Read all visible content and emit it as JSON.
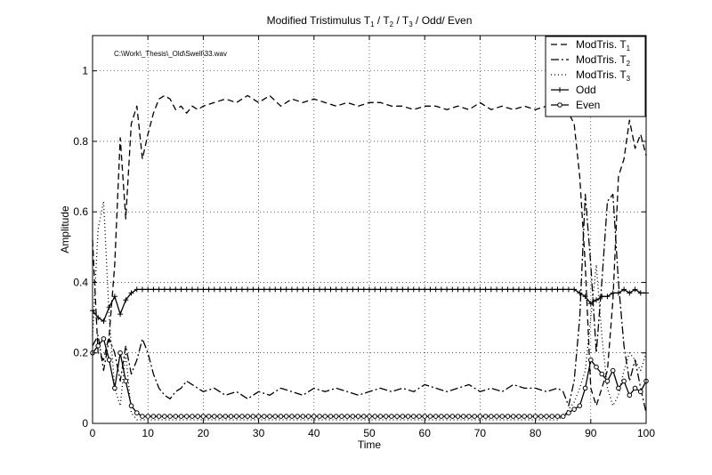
{
  "chart_data": {
    "type": "line",
    "title": {
      "prefix": "Modified Tristimulus T",
      "sub1": "1",
      "sep1": " / T",
      "sub2": "2",
      "sep2": " / T",
      "sub3": "3",
      "suffix": " / Odd/ Even"
    },
    "annotation": "C:\\Work\\_Thesis\\_Old\\Swell\\33.wav",
    "xlabel": "Time",
    "ylabel": "Amplitude",
    "xlim": [
      0,
      100
    ],
    "ylim": [
      0,
      1.1
    ],
    "xticks": [
      0,
      10,
      20,
      30,
      40,
      50,
      60,
      70,
      80,
      90,
      100
    ],
    "yticks": [
      0,
      0.2,
      0.4,
      0.6,
      0.8,
      1
    ],
    "xtick_labels": [
      "0",
      "10",
      "20",
      "30",
      "40",
      "50",
      "60",
      "70",
      "80",
      "90",
      "100"
    ],
    "ytick_labels": [
      "0",
      "0.2",
      "0.4",
      "0.6",
      "0.8",
      "1"
    ],
    "grid": true,
    "legend_position": "top-right",
    "series": [
      {
        "name": "ModTris. T",
        "name_sub": "1",
        "style": "dashed",
        "marker": "none",
        "color": "#000000",
        "x": [
          0,
          1,
          2,
          3,
          4,
          5,
          6,
          7,
          8,
          9,
          10,
          11,
          12,
          13,
          14,
          15,
          16,
          17,
          18,
          19,
          20,
          22,
          24,
          26,
          28,
          30,
          32,
          34,
          36,
          38,
          40,
          42,
          44,
          46,
          48,
          50,
          52,
          54,
          56,
          58,
          60,
          62,
          64,
          66,
          68,
          70,
          72,
          74,
          76,
          78,
          80,
          82,
          84,
          85,
          86,
          87,
          88,
          89,
          90,
          91,
          92,
          93,
          94,
          95,
          96,
          97,
          98,
          99,
          100
        ],
        "y": [
          0.52,
          0.2,
          0.18,
          0.25,
          0.45,
          0.81,
          0.58,
          0.85,
          0.9,
          0.75,
          0.82,
          0.88,
          0.92,
          0.93,
          0.92,
          0.89,
          0.9,
          0.88,
          0.9,
          0.89,
          0.9,
          0.91,
          0.92,
          0.91,
          0.93,
          0.91,
          0.93,
          0.9,
          0.92,
          0.91,
          0.92,
          0.91,
          0.9,
          0.91,
          0.9,
          0.91,
          0.91,
          0.9,
          0.9,
          0.89,
          0.9,
          0.9,
          0.89,
          0.9,
          0.89,
          0.91,
          0.89,
          0.9,
          0.89,
          0.9,
          0.89,
          0.9,
          0.89,
          0.89,
          0.88,
          0.85,
          0.7,
          0.45,
          0.1,
          0.05,
          0.1,
          0.15,
          0.35,
          0.7,
          0.75,
          0.86,
          0.78,
          0.82,
          0.76
        ]
      },
      {
        "name": "ModTris. T",
        "name_sub": "2",
        "style": "dashdot",
        "marker": "none",
        "color": "#000000",
        "x": [
          0,
          1,
          2,
          3,
          4,
          5,
          6,
          7,
          8,
          9,
          10,
          11,
          12,
          13,
          14,
          15,
          16,
          17,
          18,
          19,
          20,
          22,
          24,
          26,
          28,
          30,
          32,
          34,
          36,
          38,
          40,
          42,
          44,
          46,
          48,
          50,
          52,
          54,
          56,
          58,
          60,
          62,
          64,
          66,
          68,
          70,
          72,
          74,
          76,
          78,
          80,
          82,
          84,
          85,
          86,
          87,
          88,
          89,
          90,
          91,
          92,
          93,
          94,
          95,
          96,
          97,
          98,
          99,
          100
        ],
        "y": [
          0.22,
          0.25,
          0.15,
          0.24,
          0.2,
          0.12,
          0.22,
          0.14,
          0.18,
          0.24,
          0.2,
          0.14,
          0.1,
          0.08,
          0.07,
          0.09,
          0.1,
          0.12,
          0.11,
          0.1,
          0.09,
          0.1,
          0.08,
          0.09,
          0.07,
          0.09,
          0.08,
          0.1,
          0.09,
          0.08,
          0.1,
          0.09,
          0.1,
          0.09,
          0.08,
          0.09,
          0.1,
          0.09,
          0.1,
          0.09,
          0.11,
          0.1,
          0.09,
          0.1,
          0.11,
          0.09,
          0.1,
          0.09,
          0.11,
          0.1,
          0.1,
          0.09,
          0.1,
          0.09,
          0.05,
          0.12,
          0.3,
          0.65,
          0.45,
          0.2,
          0.4,
          0.63,
          0.65,
          0.4,
          0.22,
          0.12,
          0.18,
          0.1,
          0.03
        ]
      },
      {
        "name": "ModTris. T",
        "name_sub": "3",
        "style": "dotted",
        "marker": "none",
        "color": "#000000",
        "x": [
          0,
          1,
          2,
          3,
          4,
          5,
          6,
          7,
          8,
          9,
          10,
          12,
          14,
          16,
          18,
          20,
          25,
          30,
          35,
          40,
          45,
          50,
          55,
          60,
          65,
          70,
          75,
          80,
          82,
          84,
          85,
          86,
          87,
          88,
          89,
          90,
          91,
          92,
          93,
          94,
          95,
          96,
          97,
          98,
          99,
          100
        ],
        "y": [
          0.25,
          0.55,
          0.63,
          0.3,
          0.1,
          0.05,
          0.2,
          0.03,
          0.01,
          0.01,
          0.01,
          0.01,
          0.01,
          0.01,
          0.01,
          0.01,
          0.01,
          0.01,
          0.01,
          0.01,
          0.01,
          0.01,
          0.01,
          0.01,
          0.01,
          0.01,
          0.01,
          0.01,
          0.01,
          0.01,
          0.02,
          0.04,
          0.06,
          0.1,
          0.15,
          0.3,
          0.45,
          0.25,
          0.1,
          0.05,
          0.08,
          0.15,
          0.2,
          0.18,
          0.15,
          0.2
        ]
      },
      {
        "name": "Odd",
        "style": "solid",
        "marker": "plus",
        "color": "#000000",
        "x": [
          0,
          1,
          2,
          3,
          4,
          5,
          6,
          7,
          8,
          9,
          10,
          11,
          12,
          13,
          14,
          15,
          16,
          17,
          18,
          19,
          20,
          21,
          22,
          23,
          24,
          25,
          26,
          27,
          28,
          29,
          30,
          31,
          32,
          33,
          34,
          35,
          36,
          37,
          38,
          39,
          40,
          41,
          42,
          43,
          44,
          45,
          46,
          47,
          48,
          49,
          50,
          51,
          52,
          53,
          54,
          55,
          56,
          57,
          58,
          59,
          60,
          61,
          62,
          63,
          64,
          65,
          66,
          67,
          68,
          69,
          70,
          71,
          72,
          73,
          74,
          75,
          76,
          77,
          78,
          79,
          80,
          81,
          82,
          83,
          84,
          85,
          86,
          87,
          88,
          89,
          90,
          91,
          92,
          93,
          94,
          95,
          96,
          97,
          98,
          99,
          100
        ],
        "y": [
          0.32,
          0.3,
          0.29,
          0.33,
          0.36,
          0.31,
          0.35,
          0.37,
          0.38,
          0.38,
          0.38,
          0.38,
          0.38,
          0.38,
          0.38,
          0.38,
          0.38,
          0.38,
          0.38,
          0.38,
          0.38,
          0.38,
          0.38,
          0.38,
          0.38,
          0.38,
          0.38,
          0.38,
          0.38,
          0.38,
          0.38,
          0.38,
          0.38,
          0.38,
          0.38,
          0.38,
          0.38,
          0.38,
          0.38,
          0.38,
          0.38,
          0.38,
          0.38,
          0.38,
          0.38,
          0.38,
          0.38,
          0.38,
          0.38,
          0.38,
          0.38,
          0.38,
          0.38,
          0.38,
          0.38,
          0.38,
          0.38,
          0.38,
          0.38,
          0.38,
          0.38,
          0.38,
          0.38,
          0.38,
          0.38,
          0.38,
          0.38,
          0.38,
          0.38,
          0.38,
          0.38,
          0.38,
          0.38,
          0.38,
          0.38,
          0.38,
          0.38,
          0.38,
          0.38,
          0.38,
          0.38,
          0.38,
          0.38,
          0.38,
          0.38,
          0.38,
          0.38,
          0.38,
          0.37,
          0.36,
          0.34,
          0.35,
          0.36,
          0.36,
          0.37,
          0.37,
          0.38,
          0.37,
          0.38,
          0.37,
          0.37
        ]
      },
      {
        "name": "Even",
        "style": "solid",
        "marker": "circle",
        "color": "#000000",
        "x": [
          0,
          1,
          2,
          3,
          4,
          5,
          6,
          7,
          8,
          9,
          10,
          11,
          12,
          13,
          14,
          15,
          16,
          17,
          18,
          19,
          20,
          21,
          22,
          23,
          24,
          25,
          26,
          27,
          28,
          29,
          30,
          31,
          32,
          33,
          34,
          35,
          36,
          37,
          38,
          39,
          40,
          41,
          42,
          43,
          44,
          45,
          46,
          47,
          48,
          49,
          50,
          51,
          52,
          53,
          54,
          55,
          56,
          57,
          58,
          59,
          60,
          61,
          62,
          63,
          64,
          65,
          66,
          67,
          68,
          69,
          70,
          71,
          72,
          73,
          74,
          75,
          76,
          77,
          78,
          79,
          80,
          81,
          82,
          83,
          84,
          85,
          86,
          87,
          88,
          89,
          90,
          91,
          92,
          93,
          94,
          95,
          96,
          97,
          98,
          99,
          100
        ],
        "y": [
          0.2,
          0.22,
          0.24,
          0.18,
          0.1,
          0.2,
          0.12,
          0.05,
          0.03,
          0.02,
          0.02,
          0.02,
          0.02,
          0.02,
          0.02,
          0.02,
          0.02,
          0.02,
          0.02,
          0.02,
          0.02,
          0.02,
          0.02,
          0.02,
          0.02,
          0.02,
          0.02,
          0.02,
          0.02,
          0.02,
          0.02,
          0.02,
          0.02,
          0.02,
          0.02,
          0.02,
          0.02,
          0.02,
          0.02,
          0.02,
          0.02,
          0.02,
          0.02,
          0.02,
          0.02,
          0.02,
          0.02,
          0.02,
          0.02,
          0.02,
          0.02,
          0.02,
          0.02,
          0.02,
          0.02,
          0.02,
          0.02,
          0.02,
          0.02,
          0.02,
          0.02,
          0.02,
          0.02,
          0.02,
          0.02,
          0.02,
          0.02,
          0.02,
          0.02,
          0.02,
          0.02,
          0.02,
          0.02,
          0.02,
          0.02,
          0.02,
          0.02,
          0.02,
          0.02,
          0.02,
          0.02,
          0.02,
          0.02,
          0.02,
          0.02,
          0.02,
          0.03,
          0.04,
          0.05,
          0.1,
          0.18,
          0.16,
          0.14,
          0.12,
          0.15,
          0.1,
          0.12,
          0.08,
          0.1,
          0.09,
          0.12
        ]
      }
    ]
  }
}
